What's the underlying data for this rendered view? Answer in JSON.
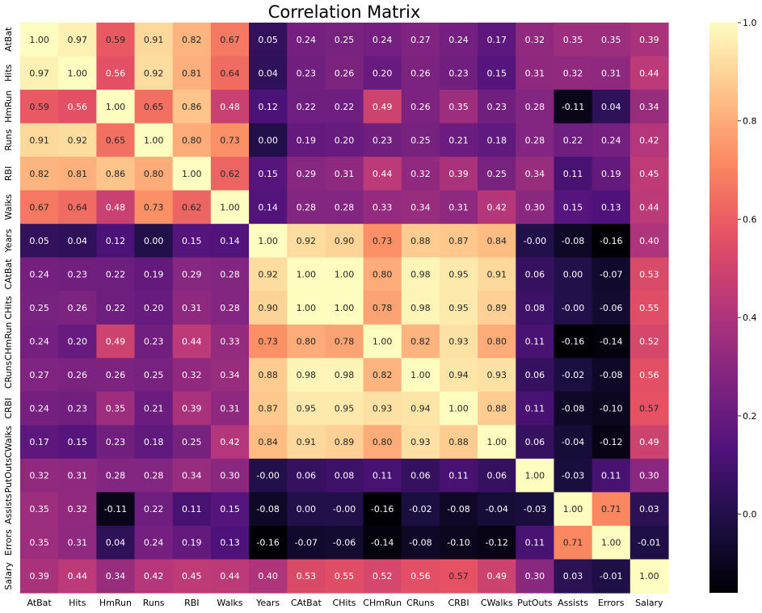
{
  "chart_data": {
    "type": "heatmap",
    "title": "Correlation Matrix",
    "labels": [
      "AtBat",
      "Hits",
      "HmRun",
      "Runs",
      "RBI",
      "Walks",
      "Years",
      "CAtBat",
      "CHits",
      "CHmRun",
      "CRuns",
      "CRBI",
      "CWalks",
      "PutOuts",
      "Assists",
      "Errors",
      "Salary"
    ],
    "values": [
      [
        1.0,
        0.97,
        0.59,
        0.91,
        0.82,
        0.67,
        0.05,
        0.24,
        0.25,
        0.24,
        0.27,
        0.24,
        0.17,
        0.32,
        0.35,
        0.35,
        0.39
      ],
      [
        0.97,
        1.0,
        0.56,
        0.92,
        0.81,
        0.64,
        0.04,
        0.23,
        0.26,
        0.2,
        0.26,
        0.23,
        0.15,
        0.31,
        0.32,
        0.31,
        0.44
      ],
      [
        0.59,
        0.56,
        1.0,
        0.65,
        0.86,
        0.48,
        0.12,
        0.22,
        0.22,
        0.49,
        0.26,
        0.35,
        0.23,
        0.28,
        -0.11,
        0.04,
        0.34
      ],
      [
        0.91,
        0.92,
        0.65,
        1.0,
        0.8,
        0.73,
        0.0,
        0.19,
        0.2,
        0.23,
        0.25,
        0.21,
        0.18,
        0.28,
        0.22,
        0.24,
        0.42
      ],
      [
        0.82,
        0.81,
        0.86,
        0.8,
        1.0,
        0.62,
        0.15,
        0.29,
        0.31,
        0.44,
        0.32,
        0.39,
        0.25,
        0.34,
        0.11,
        0.19,
        0.45
      ],
      [
        0.67,
        0.64,
        0.48,
        0.73,
        0.62,
        1.0,
        0.14,
        0.28,
        0.28,
        0.33,
        0.34,
        0.31,
        0.42,
        0.3,
        0.15,
        0.13,
        0.44
      ],
      [
        0.05,
        0.04,
        0.12,
        0.0,
        0.15,
        0.14,
        1.0,
        0.92,
        0.9,
        0.73,
        0.88,
        0.87,
        0.84,
        -0.0,
        -0.08,
        -0.16,
        0.4
      ],
      [
        0.24,
        0.23,
        0.22,
        0.19,
        0.29,
        0.28,
        0.92,
        1.0,
        1.0,
        0.8,
        0.98,
        0.95,
        0.91,
        0.06,
        0.0,
        -0.07,
        0.53
      ],
      [
        0.25,
        0.26,
        0.22,
        0.2,
        0.31,
        0.28,
        0.9,
        1.0,
        1.0,
        0.78,
        0.98,
        0.95,
        0.89,
        0.08,
        -0.0,
        -0.06,
        0.55
      ],
      [
        0.24,
        0.2,
        0.49,
        0.23,
        0.44,
        0.33,
        0.73,
        0.8,
        0.78,
        1.0,
        0.82,
        0.93,
        0.8,
        0.11,
        -0.16,
        -0.14,
        0.52
      ],
      [
        0.27,
        0.26,
        0.26,
        0.25,
        0.32,
        0.34,
        0.88,
        0.98,
        0.98,
        0.82,
        1.0,
        0.94,
        0.93,
        0.06,
        -0.02,
        -0.08,
        0.56
      ],
      [
        0.24,
        0.23,
        0.35,
        0.21,
        0.39,
        0.31,
        0.87,
        0.95,
        0.95,
        0.93,
        0.94,
        1.0,
        0.88,
        0.11,
        -0.08,
        -0.1,
        0.57
      ],
      [
        0.17,
        0.15,
        0.23,
        0.18,
        0.25,
        0.42,
        0.84,
        0.91,
        0.89,
        0.8,
        0.93,
        0.88,
        1.0,
        0.06,
        -0.04,
        -0.12,
        0.49
      ],
      [
        0.32,
        0.31,
        0.28,
        0.28,
        0.34,
        0.3,
        -0.0,
        0.06,
        0.08,
        0.11,
        0.06,
        0.11,
        0.06,
        1.0,
        -0.03,
        0.11,
        0.3
      ],
      [
        0.35,
        0.32,
        -0.11,
        0.22,
        0.11,
        0.15,
        -0.08,
        0.0,
        -0.0,
        -0.16,
        -0.02,
        -0.08,
        -0.04,
        -0.03,
        1.0,
        0.71,
        0.03
      ],
      [
        0.35,
        0.31,
        0.04,
        0.24,
        0.19,
        0.13,
        -0.16,
        -0.07,
        -0.06,
        -0.14,
        -0.08,
        -0.1,
        -0.12,
        0.11,
        0.71,
        1.0,
        -0.01
      ],
      [
        0.39,
        0.44,
        0.34,
        0.42,
        0.45,
        0.44,
        0.4,
        0.53,
        0.55,
        0.52,
        0.56,
        0.57,
        0.49,
        0.3,
        0.03,
        -0.01,
        1.0
      ]
    ],
    "value_format": "0.00",
    "colormap": "magma",
    "vmin": -0.16,
    "vmax": 1.0,
    "colorbar_ticks": [
      "0.0",
      "0.2",
      "0.4",
      "0.6",
      "0.8",
      "1.0"
    ],
    "colorbar_tick_values": [
      0.0,
      0.2,
      0.4,
      0.6,
      0.8,
      1.0
    ]
  }
}
